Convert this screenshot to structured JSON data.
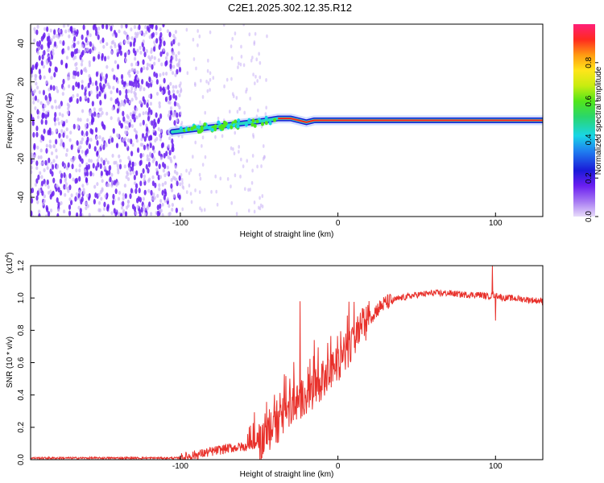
{
  "title": "C2E1.2025.302.12.35.R12",
  "colors": {
    "signal_line": "#e8312b",
    "spectrogram_dots": "#6a1ef0",
    "spectrogram_faint": "#cdb8f7",
    "signal_ridge": "#ff2a1f",
    "axes": "#000000"
  },
  "colorbar": {
    "label": "Normalized spectral amplitude",
    "ticks": [
      {
        "value": 0.0,
        "label": "0.0"
      },
      {
        "value": 0.2,
        "label": "0.2"
      },
      {
        "value": 0.4,
        "label": "0.4"
      },
      {
        "value": 0.6,
        "label": "0.6"
      },
      {
        "value": 0.8,
        "label": "0.8"
      }
    ],
    "range": [
      0,
      1
    ]
  },
  "chart_data": [
    {
      "type": "heatmap",
      "title": "C2E1.2025.302.12.35.R12",
      "xlabel": "Height of straight line (km)",
      "ylabel": "Frequency (Hz)",
      "xlim": [
        -195,
        130
      ],
      "ylim": [
        -50,
        50
      ],
      "xticks": [
        {
          "value": -100,
          "label": "-100"
        },
        {
          "value": 0,
          "label": "0"
        },
        {
          "value": 100,
          "label": "100"
        }
      ],
      "yticks": [
        {
          "value": -40,
          "label": "-40"
        },
        {
          "value": -20,
          "label": "-20"
        },
        {
          "value": 0,
          "label": "0"
        },
        {
          "value": 20,
          "label": "20"
        },
        {
          "value": 40,
          "label": "40"
        }
      ],
      "colorbar_label": "Normalized spectral amplitude",
      "noise_region_x": [
        -195,
        -100
      ],
      "signal_ridge": {
        "x": [
          -105,
          -95,
          -85,
          -75,
          -65,
          -55,
          -45,
          -38,
          -30,
          -25,
          -20,
          -15,
          -10,
          0,
          50,
          100,
          130
        ],
        "freq": [
          -6,
          -5,
          -4,
          -3,
          -2,
          -1,
          0,
          1,
          1,
          0,
          -1,
          0,
          0,
          0,
          0,
          0,
          0
        ]
      }
    },
    {
      "type": "line",
      "xlabel": "Height of straight line (km)",
      "ylabel": "SNR (10 * v/v)",
      "yscale_label": "(x10",
      "yscale_exponent": "4",
      "yscale_suffix": ")",
      "xlim": [
        -195,
        130
      ],
      "ylim": [
        0,
        1.2
      ],
      "xticks": [
        {
          "value": -100,
          "label": "-100"
        },
        {
          "value": 0,
          "label": "0"
        },
        {
          "value": 100,
          "label": "100"
        }
      ],
      "yticks": [
        {
          "value": 0.0,
          "label": "0.0"
        },
        {
          "value": 0.2,
          "label": "0.2"
        },
        {
          "value": 0.4,
          "label": "0.4"
        },
        {
          "value": 0.6,
          "label": "0.6"
        },
        {
          "value": 0.8,
          "label": "0.8"
        },
        {
          "value": 1.0,
          "label": "1.0"
        },
        {
          "value": 1.2,
          "label": "1.2"
        }
      ],
      "series": [
        {
          "name": "SNR",
          "x": [
            -195,
            -150,
            -120,
            -100,
            -90,
            -80,
            -70,
            -60,
            -50,
            -45,
            -40,
            -35,
            -30,
            -25,
            -20,
            -15,
            -10,
            -5,
            0,
            5,
            10,
            15,
            20,
            25,
            30,
            40,
            50,
            60,
            70,
            80,
            90,
            95,
            100,
            105,
            110,
            120,
            130
          ],
          "values": [
            0.01,
            0.01,
            0.01,
            0.01,
            0.03,
            0.05,
            0.07,
            0.08,
            0.1,
            0.15,
            0.2,
            0.25,
            0.32,
            0.36,
            0.4,
            0.44,
            0.48,
            0.52,
            0.6,
            0.66,
            0.72,
            0.82,
            0.88,
            0.93,
            0.97,
            1.0,
            1.02,
            1.03,
            1.03,
            1.02,
            1.02,
            1.01,
            1.02,
            1.0,
            1.0,
            0.99,
            0.98
          ]
        }
      ],
      "spikes": [
        {
          "x": -24,
          "value": 0.98
        },
        {
          "x": -15,
          "value": 0.74
        },
        {
          "x": 5,
          "value": 0.78
        },
        {
          "x": 98,
          "value": 1.2
        },
        {
          "x": 100,
          "value": 0.86
        }
      ]
    }
  ]
}
